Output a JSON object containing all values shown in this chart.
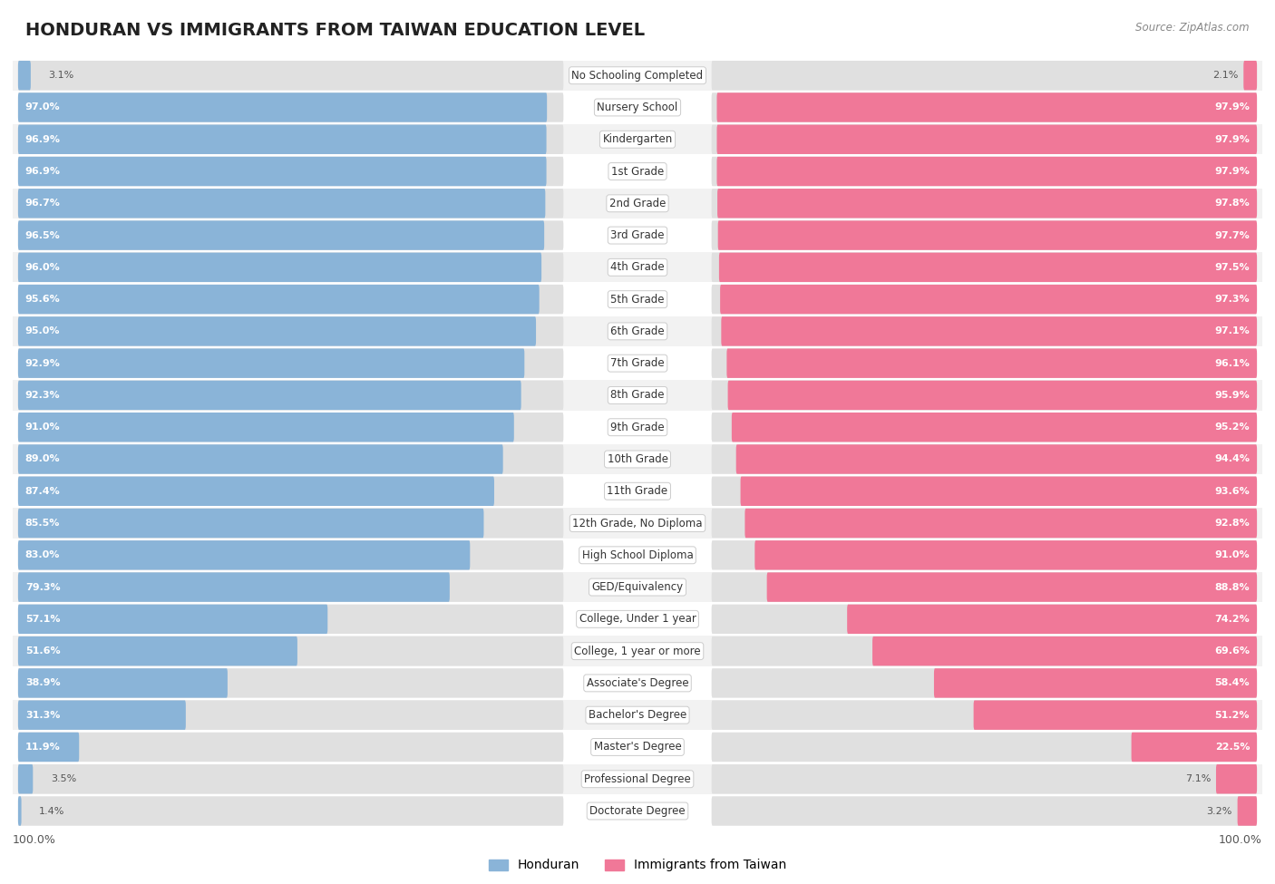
{
  "title": "HONDURAN VS IMMIGRANTS FROM TAIWAN EDUCATION LEVEL",
  "source": "Source: ZipAtlas.com",
  "categories": [
    "No Schooling Completed",
    "Nursery School",
    "Kindergarten",
    "1st Grade",
    "2nd Grade",
    "3rd Grade",
    "4th Grade",
    "5th Grade",
    "6th Grade",
    "7th Grade",
    "8th Grade",
    "9th Grade",
    "10th Grade",
    "11th Grade",
    "12th Grade, No Diploma",
    "High School Diploma",
    "GED/Equivalency",
    "College, Under 1 year",
    "College, 1 year or more",
    "Associate's Degree",
    "Bachelor's Degree",
    "Master's Degree",
    "Professional Degree",
    "Doctorate Degree"
  ],
  "honduran": [
    3.1,
    97.0,
    96.9,
    96.9,
    96.7,
    96.5,
    96.0,
    95.6,
    95.0,
    92.9,
    92.3,
    91.0,
    89.0,
    87.4,
    85.5,
    83.0,
    79.3,
    57.1,
    51.6,
    38.9,
    31.3,
    11.9,
    3.5,
    1.4
  ],
  "taiwan": [
    2.1,
    97.9,
    97.9,
    97.9,
    97.8,
    97.7,
    97.5,
    97.3,
    97.1,
    96.1,
    95.9,
    95.2,
    94.4,
    93.6,
    92.8,
    91.0,
    88.8,
    74.2,
    69.6,
    58.4,
    51.2,
    22.5,
    7.1,
    3.2
  ],
  "blue_color": "#8ab4d8",
  "pink_color": "#f07898",
  "bg_color_even": "#f2f2f2",
  "bg_color_odd": "#ffffff",
  "bar_bg_color": "#e0e0e0",
  "legend_blue": "Honduran",
  "legend_pink": "Immigrants from Taiwan",
  "label_color": "#555555",
  "value_color": "#ffffff",
  "font_size_title": 14,
  "font_size_labels": 8.5,
  "font_size_values": 8,
  "font_size_legend": 10,
  "font_size_axis": 9
}
